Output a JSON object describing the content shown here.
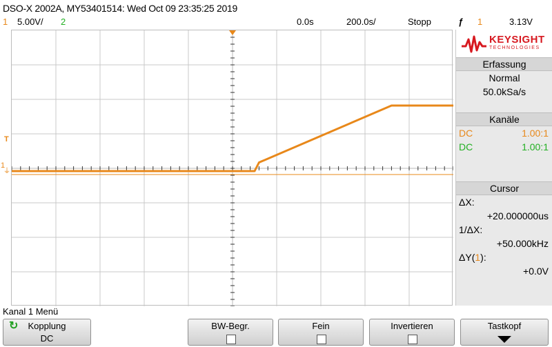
{
  "titlebar": {
    "text": "DSO-X 2002A, MY53401514: Wed Oct 09 23:35:25 2019"
  },
  "status": {
    "ch1_num": "1",
    "ch1_scale": "5.00V/",
    "ch2_num": "2",
    "time_offset": "0.0s",
    "timebase": "200.0s/",
    "run_state": "Stopp",
    "trigger_symbol": "ƒ",
    "trigger_channel": "1",
    "trigger_level": "3.13V"
  },
  "markers": {
    "ch1_ground": "1",
    "trigger_tick": "T"
  },
  "waveform": {
    "color": "#e8881a",
    "ground_level_div": 0,
    "segments": [
      {
        "t_div": 0.0,
        "v_div": 0.0
      },
      {
        "t_div": 5.5,
        "v_div": 0.0
      },
      {
        "t_div": 5.6,
        "v_div": 0.25
      },
      {
        "t_div": 8.6,
        "v_div": 1.9
      },
      {
        "t_div": 10.0,
        "v_div": 1.9
      }
    ]
  },
  "panel": {
    "brand": "KEYSIGHT",
    "brand_sub": "TECHNOLOGIES",
    "erfassung": {
      "title": "Erfassung",
      "mode": "Normal",
      "rate": "50.0kSa/s"
    },
    "kanaele": {
      "title": "Kanäle",
      "ch1": {
        "coupling": "DC",
        "probe": "1.00:1",
        "color": "#e8881a"
      },
      "ch2": {
        "coupling": "DC",
        "probe": "1.00:1",
        "color": "#22b022"
      }
    },
    "cursor": {
      "title": "Cursor",
      "dx_label": "ΔX:",
      "dx_value": "+20.000000us",
      "inv_label": "1/ΔX:",
      "inv_value": "+50.000kHz",
      "dy_label_pre": "ΔY(",
      "dy_channel": "1",
      "dy_label_post": "):",
      "dy_value": "+0.0V"
    }
  },
  "menu": {
    "name": "Kanal 1 Menü"
  },
  "softkeys": [
    {
      "label": "Kopplung",
      "value": "DC"
    },
    {
      "label": "BW-Begr.",
      "value": ""
    },
    {
      "label": "Fein",
      "value": ""
    },
    {
      "label": "Invertieren",
      "value": ""
    },
    {
      "label": "Tastkopf",
      "value": ""
    }
  ]
}
